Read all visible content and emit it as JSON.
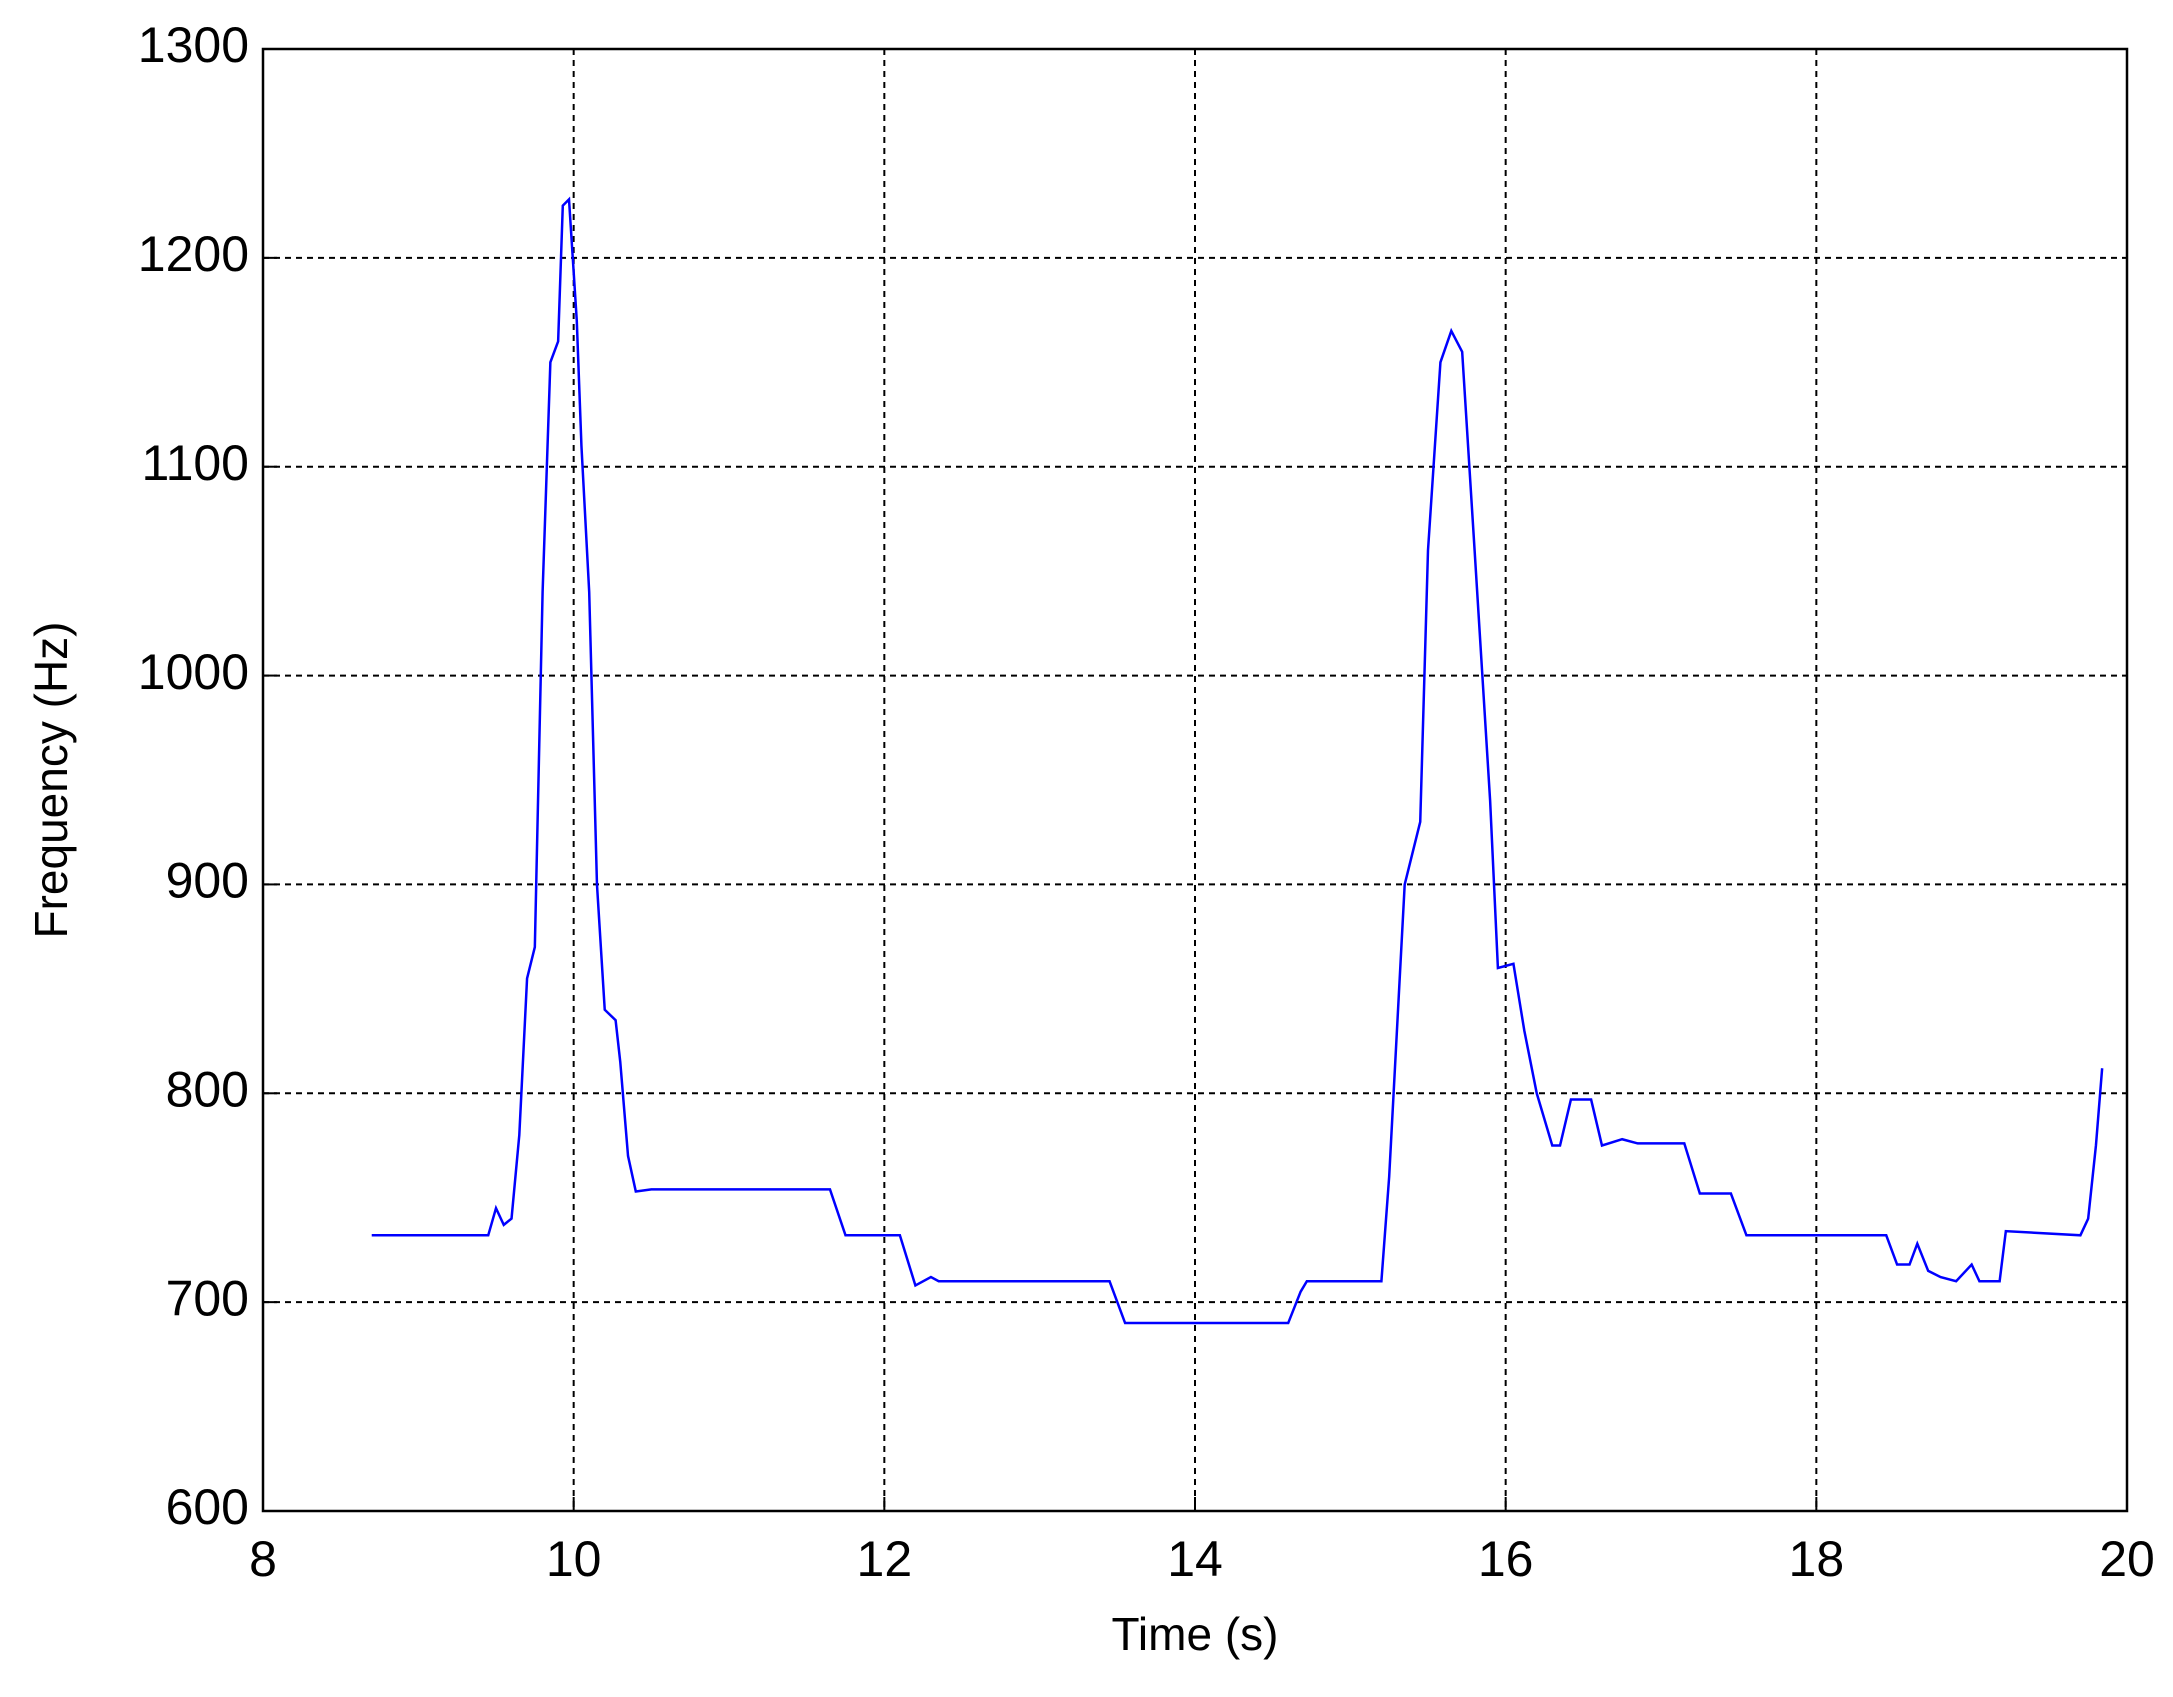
{
  "chart_data": {
    "type": "line",
    "x_label": "Time (s)",
    "y_label": "Frequency (Hz)",
    "xlim": [
      8,
      20
    ],
    "ylim": [
      600,
      1300
    ],
    "xticks": [
      8,
      10,
      12,
      14,
      16,
      18,
      20
    ],
    "yticks": [
      600,
      700,
      800,
      900,
      1000,
      1100,
      1200,
      1300
    ],
    "grid": true,
    "series": [
      {
        "color": "#0000ff",
        "x": [
          8.7,
          9.45,
          9.5,
          9.55,
          9.6,
          9.65,
          9.7,
          9.75,
          9.8,
          9.85,
          9.9,
          9.93,
          9.97,
          10.02,
          10.05,
          10.1,
          10.15,
          10.2,
          10.27,
          10.3,
          10.35,
          10.4,
          10.5,
          11.65,
          11.75,
          12.1,
          12.15,
          12.2,
          12.3,
          12.35,
          13.45,
          13.55,
          14.6,
          14.68,
          14.72,
          15.2,
          15.25,
          15.35,
          15.45,
          15.5,
          15.58,
          15.65,
          15.72,
          15.8,
          15.9,
          15.95,
          16.05,
          16.12,
          16.2,
          16.3,
          16.35,
          16.42,
          16.55,
          16.62,
          16.75,
          16.85,
          17.15,
          17.25,
          17.45,
          17.55,
          18.45,
          18.52,
          18.6,
          18.65,
          18.72,
          18.8,
          18.9,
          19.0,
          19.05,
          19.18,
          19.22,
          19.7,
          19.75,
          19.8,
          19.84
        ],
        "values": [
          732,
          732,
          745,
          737,
          740,
          780,
          855,
          870,
          1040,
          1150,
          1160,
          1225,
          1228,
          1170,
          1110,
          1040,
          900,
          840,
          835,
          815,
          770,
          753,
          754,
          754,
          732,
          732,
          720,
          708,
          712,
          710,
          710,
          690,
          690,
          705,
          710,
          710,
          760,
          900,
          930,
          1060,
          1150,
          1165,
          1155,
          1060,
          940,
          860,
          862,
          830,
          800,
          775,
          775,
          797,
          797,
          775,
          778,
          776,
          776,
          752,
          752,
          732,
          732,
          718,
          718,
          728,
          715,
          712,
          710,
          718,
          710,
          710,
          734,
          732,
          740,
          775,
          812
        ]
      }
    ]
  }
}
